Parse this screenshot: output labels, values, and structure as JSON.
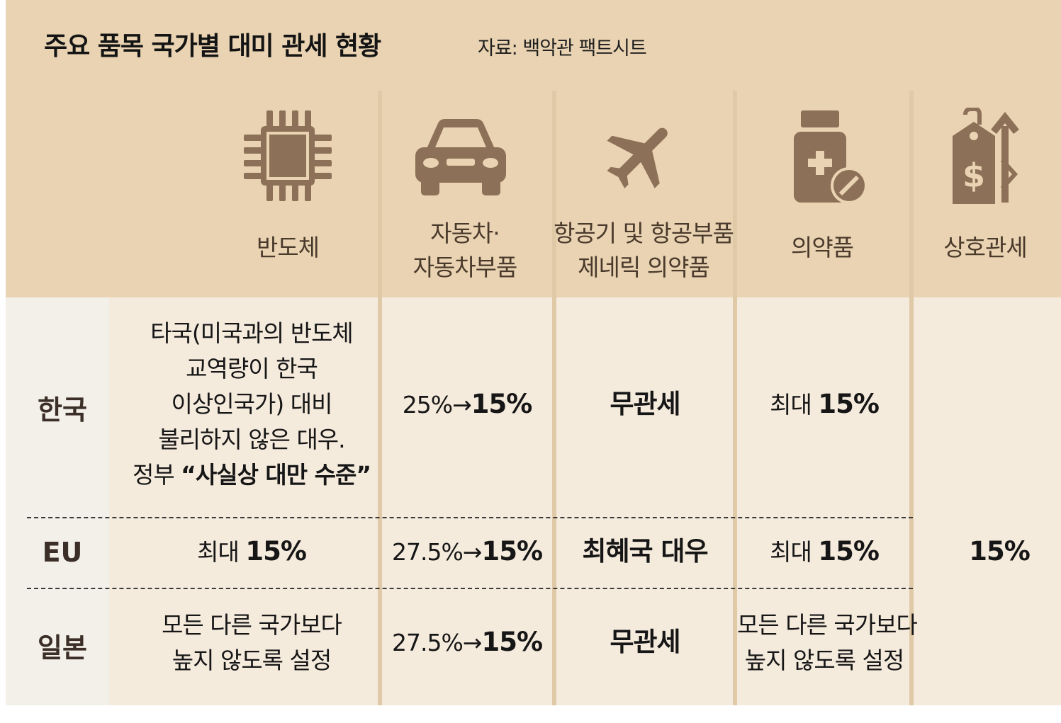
{
  "header": {
    "title": "주요 품목 국가별 대미 관세 현황",
    "source": "자료: 백악관 팩트시트"
  },
  "columns": [
    {
      "icon": "chip-icon",
      "label_lines": [
        "반도체"
      ]
    },
    {
      "icon": "car-icon",
      "label_lines": [
        "자동차·",
        "자동차부품"
      ]
    },
    {
      "icon": "airplane-icon",
      "label_lines": [
        "항공기 및 항공부품",
        "제네릭 의약품"
      ]
    },
    {
      "icon": "medicine-bottle-icon",
      "label_lines": [
        "의약품"
      ]
    },
    {
      "icon": "price-tag-up-icon",
      "label_lines": [
        "상호관세"
      ]
    }
  ],
  "rows": [
    {
      "country": "한국",
      "semiconductor": {
        "lines": [
          "타국(미국과의 반도체",
          "교역량이 한국",
          "이상인국가) 대비",
          "불리하지 않은 대우."
        ],
        "last_prefix": "정부 ",
        "last_bold": "“사실상 대만 수준”"
      },
      "auto": {
        "before": "25%→",
        "after": "15%"
      },
      "aircraft": "무관세",
      "pharma": {
        "prefix": "최대 ",
        "bold": "15%"
      }
    },
    {
      "country": "EU",
      "semiconductor": {
        "prefix": "최대 ",
        "bold": "15%"
      },
      "auto": {
        "before": "27.5%→",
        "after": "15%"
      },
      "aircraft": "최혜국 대우",
      "pharma": {
        "prefix": "최대 ",
        "bold": "15%"
      }
    },
    {
      "country": "일본",
      "semiconductor": {
        "lines": [
          "모든 다른 국가보다",
          "높지 않도록 설정"
        ]
      },
      "auto": {
        "before": "27.5%→",
        "after": "15%"
      },
      "aircraft": "무관세",
      "pharma": {
        "lines": [
          "모든 다른 국가보다",
          "높지 않도록 설정"
        ]
      }
    }
  ],
  "reciprocal_tariff": "15%",
  "colors": {
    "header_bg": "#e9d3b2",
    "body_bg": "#f5ebdd",
    "row_label_bg": "#f3f0ea",
    "icon": "#8c7057"
  }
}
